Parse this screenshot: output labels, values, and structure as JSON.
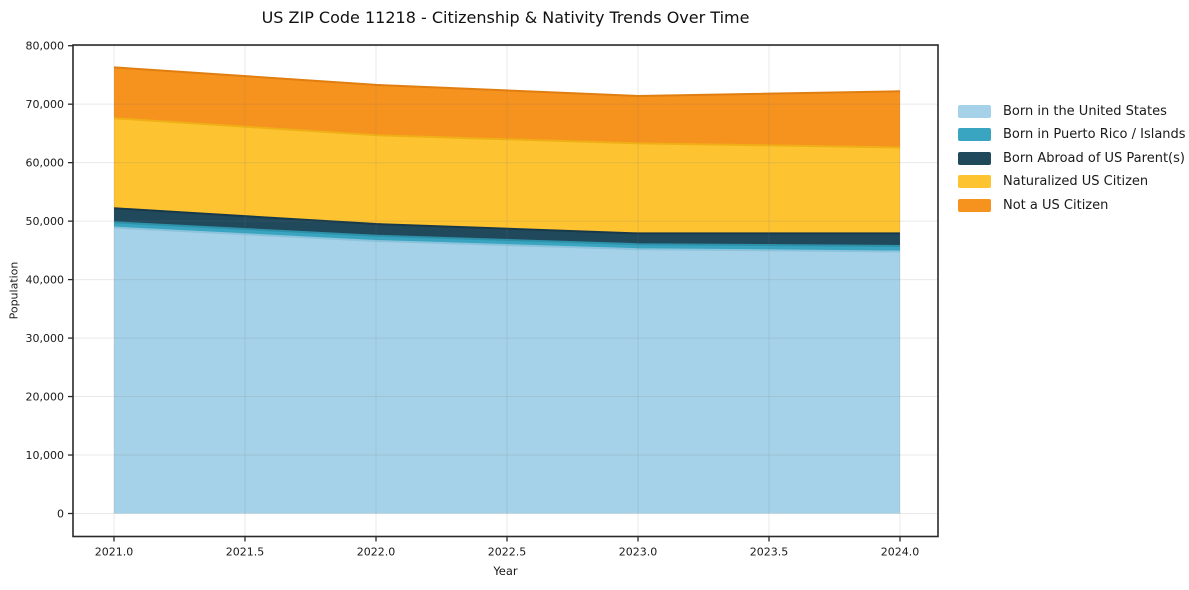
{
  "chart_data": {
    "type": "area",
    "stacked": true,
    "title": "US ZIP Code 11218 - Citizenship & Nativity Trends Over Time",
    "xlabel": "Year",
    "ylabel": "Population",
    "x": [
      2021,
      2022,
      2023,
      2024
    ],
    "series": [
      {
        "name": "Born in the United States",
        "color": "#a5d2e8",
        "edge": "#8cc3dc",
        "values": [
          48900,
          46600,
          45200,
          44800
        ]
      },
      {
        "name": "Born in Puerto Rico / Islands",
        "color": "#39a5c0",
        "edge": "#2e91aa",
        "values": [
          900,
          900,
          850,
          950
        ]
      },
      {
        "name": "Born Abroad of US Parent(s)",
        "color": "#20495c",
        "edge": "#18394a",
        "values": [
          2400,
          2000,
          1850,
          2150
        ]
      },
      {
        "name": "Naturalized US Citizen",
        "color": "#fdc330",
        "edge": "#f0ae17",
        "values": [
          15400,
          15200,
          15400,
          14700
        ]
      },
      {
        "name": "Not a US Citizen",
        "color": "#f6921e",
        "edge": "#e07e10",
        "values": [
          8700,
          8600,
          8100,
          9600
        ]
      }
    ],
    "totals": [
      76300,
      73300,
      71400,
      72200
    ],
    "xlim": [
      2020.84,
      2024.15
    ],
    "ylim": [
      0,
      80000
    ],
    "xticks": {
      "values": [
        2021.0,
        2021.5,
        2022.0,
        2022.5,
        2023.0,
        2023.5,
        2024.0
      ],
      "labels": [
        "2021.0",
        "2021.5",
        "2022.0",
        "2022.5",
        "2023.0",
        "2023.5",
        "2024.0"
      ]
    },
    "yticks": {
      "values": [
        0,
        10000,
        20000,
        30000,
        40000,
        50000,
        60000,
        70000,
        80000
      ],
      "labels": [
        "0",
        "10,000",
        "20,000",
        "30,000",
        "40,000",
        "50,000",
        "60,000",
        "70,000",
        "80,000"
      ]
    },
    "grid": true,
    "legend_position": "right",
    "colors": {
      "spine": "#2a2a2a",
      "grid": "#787878",
      "tick_text": "#1a1a1a",
      "background": "#ffffff"
    }
  }
}
